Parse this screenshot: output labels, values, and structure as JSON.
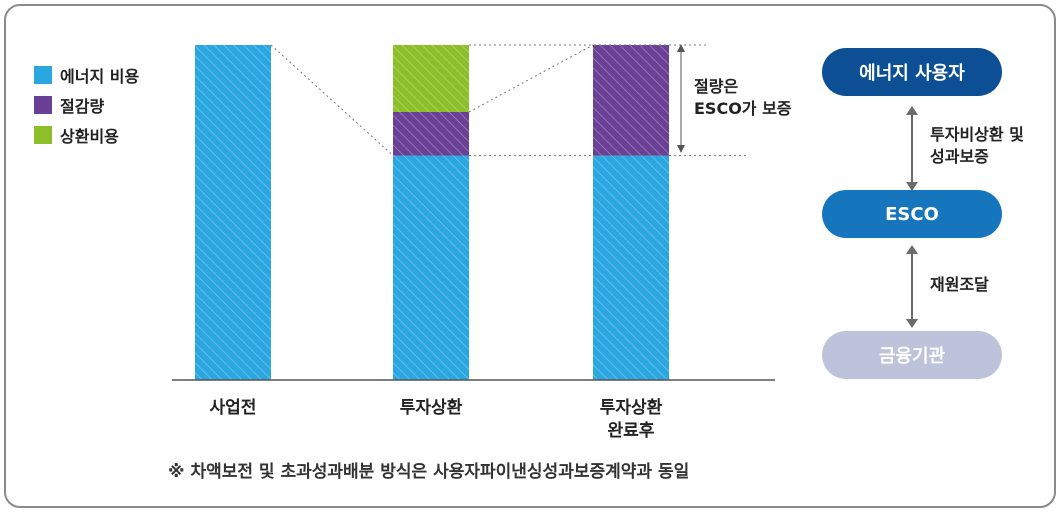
{
  "legend": [
    {
      "label": "에너지 비용",
      "color": "#2aa6e0"
    },
    {
      "label": "절감량",
      "color": "#6a3f96"
    },
    {
      "label": "상환비용",
      "color": "#8cbf2a"
    }
  ],
  "chart_data": {
    "type": "bar",
    "stacked": true,
    "categories": [
      "사업전",
      "투자상환",
      "투자상환\n완료후"
    ],
    "series": [
      {
        "name": "에너지 비용",
        "values": [
          100,
          67,
          67
        ]
      },
      {
        "name": "절감량",
        "values": [
          0,
          13,
          33
        ]
      },
      {
        "name": "상환비용",
        "values": [
          0,
          20,
          0
        ]
      }
    ],
    "annotation": "절량은\nESCO가 보증",
    "ylim": [
      0,
      100
    ]
  },
  "flow": {
    "top_pill": "에너지 사용자",
    "arrow1_label": "투자비상환 및\n성과보증",
    "middle_pill": "ESCO",
    "arrow2_label": "재원조달",
    "bottom_pill": "금융기관",
    "colors": {
      "top": "#0d4f95",
      "middle": "#1676bd",
      "bottom": "#bcc3da"
    }
  },
  "note": "※ 차액보전 및 초과성과배분 방식은 사용자파이낸싱성과보증계약과 동일"
}
